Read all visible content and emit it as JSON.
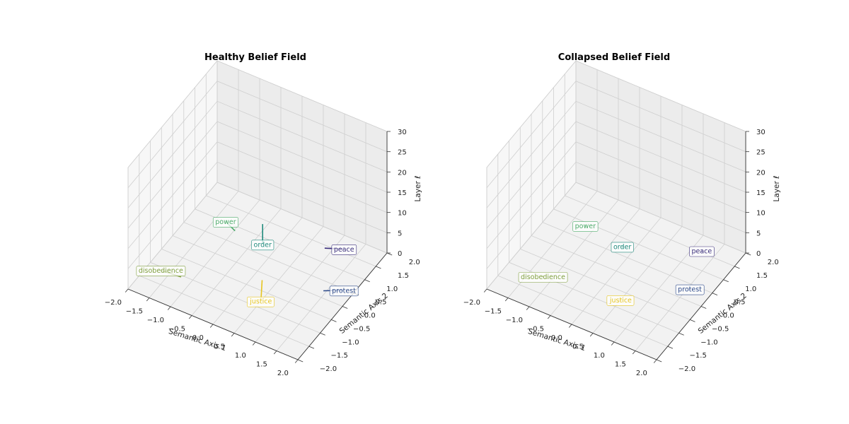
{
  "chart_data": [
    {
      "type": "line3d",
      "title": "Healthy Belief Field",
      "xlabel": "Semantic Axis 1",
      "ylabel": "Semantic Axis 2",
      "zlabel": "Layer ℓ",
      "xlim": [
        -2.0,
        2.0
      ],
      "ylim": [
        -2.0,
        2.0
      ],
      "zlim": [
        0,
        30
      ],
      "xticks": [
        "−2.0",
        "−1.5",
        "−1.0",
        "−0.5",
        "0.0",
        "0.5",
        "1.0",
        "1.5",
        "2.0"
      ],
      "yticks": [
        "−2.0",
        "−1.5",
        "−1.0",
        "−0.5",
        "0.0",
        "0.5",
        "1.0",
        "1.5",
        "2.0"
      ],
      "zticks": [
        "0",
        "5",
        "10",
        "15",
        "20",
        "25",
        "30"
      ],
      "grid": true,
      "series": [
        {
          "name": "peace",
          "color": "#3b2f7c",
          "x": [
            1.25,
            0.9
          ],
          "y": [
            1.5,
            1.3
          ],
          "z": [
            1,
            1
          ]
        },
        {
          "name": "protest",
          "color": "#2d4a8a",
          "x": [
            1.85,
            1.5
          ],
          "y": [
            0.35,
            0.1
          ],
          "z": [
            1,
            1
          ]
        },
        {
          "name": "order",
          "color": "#1f8a7c",
          "x": [
            -0.3,
            -0.3
          ],
          "y": [
            0.8,
            0.8
          ],
          "z": [
            0,
            5
          ]
        },
        {
          "name": "power",
          "color": "#4dab6a",
          "x": [
            -1.25,
            -0.95
          ],
          "y": [
            0.95,
            0.8
          ],
          "z": [
            0.5,
            0.5
          ]
        },
        {
          "name": "disobedience",
          "color": "#80a03f",
          "x": [
            -1.7,
            -1.25
          ],
          "y": [
            -1.1,
            -1.05
          ],
          "z": [
            0,
            0
          ]
        },
        {
          "name": "justice",
          "color": "#e6c520",
          "x": [
            0.5,
            0.45
          ],
          "y": [
            -0.8,
            -0.65
          ],
          "z": [
            0,
            4
          ]
        }
      ]
    },
    {
      "type": "line3d",
      "title": "Collapsed Belief Field",
      "xlabel": "Semantic Axis 1",
      "ylabel": "Semantic Axis 2",
      "zlabel": "Layer ℓ",
      "xlim": [
        -2.0,
        2.0
      ],
      "ylim": [
        -2.0,
        2.0
      ],
      "zlim": [
        0,
        30
      ],
      "xticks": [
        "−2.0",
        "−1.5",
        "−1.0",
        "−0.5",
        "0.0",
        "0.5",
        "1.0",
        "1.5",
        "2.0"
      ],
      "yticks": [
        "−2.0",
        "−1.5",
        "−1.0",
        "−0.5",
        "0.0",
        "0.5",
        "1.0",
        "1.5",
        "2.0"
      ],
      "zticks": [
        "0",
        "5",
        "10",
        "15",
        "20",
        "25",
        "30"
      ],
      "grid": true,
      "series": [
        {
          "name": "peace",
          "color": "#3b2f7c",
          "x": [
            1.2
          ],
          "y": [
            1.55
          ],
          "z": [
            0
          ]
        },
        {
          "name": "protest",
          "color": "#2d4a8a",
          "x": [
            1.55
          ],
          "y": [
            0.35
          ],
          "z": [
            0
          ]
        },
        {
          "name": "order",
          "color": "#1f8a7c",
          "x": [
            -0.25
          ],
          "y": [
            0.75
          ],
          "z": [
            0
          ]
        },
        {
          "name": "power",
          "color": "#4dab6a",
          "x": [
            -1.2
          ],
          "y": [
            0.9
          ],
          "z": [
            0
          ]
        },
        {
          "name": "disobedience",
          "color": "#80a03f",
          "x": [
            -1.2
          ],
          "y": [
            -1.0
          ],
          "z": [
            0
          ]
        },
        {
          "name": "justice",
          "color": "#e6c520",
          "x": [
            0.5
          ],
          "y": [
            -0.75
          ],
          "z": [
            0
          ]
        }
      ]
    }
  ]
}
